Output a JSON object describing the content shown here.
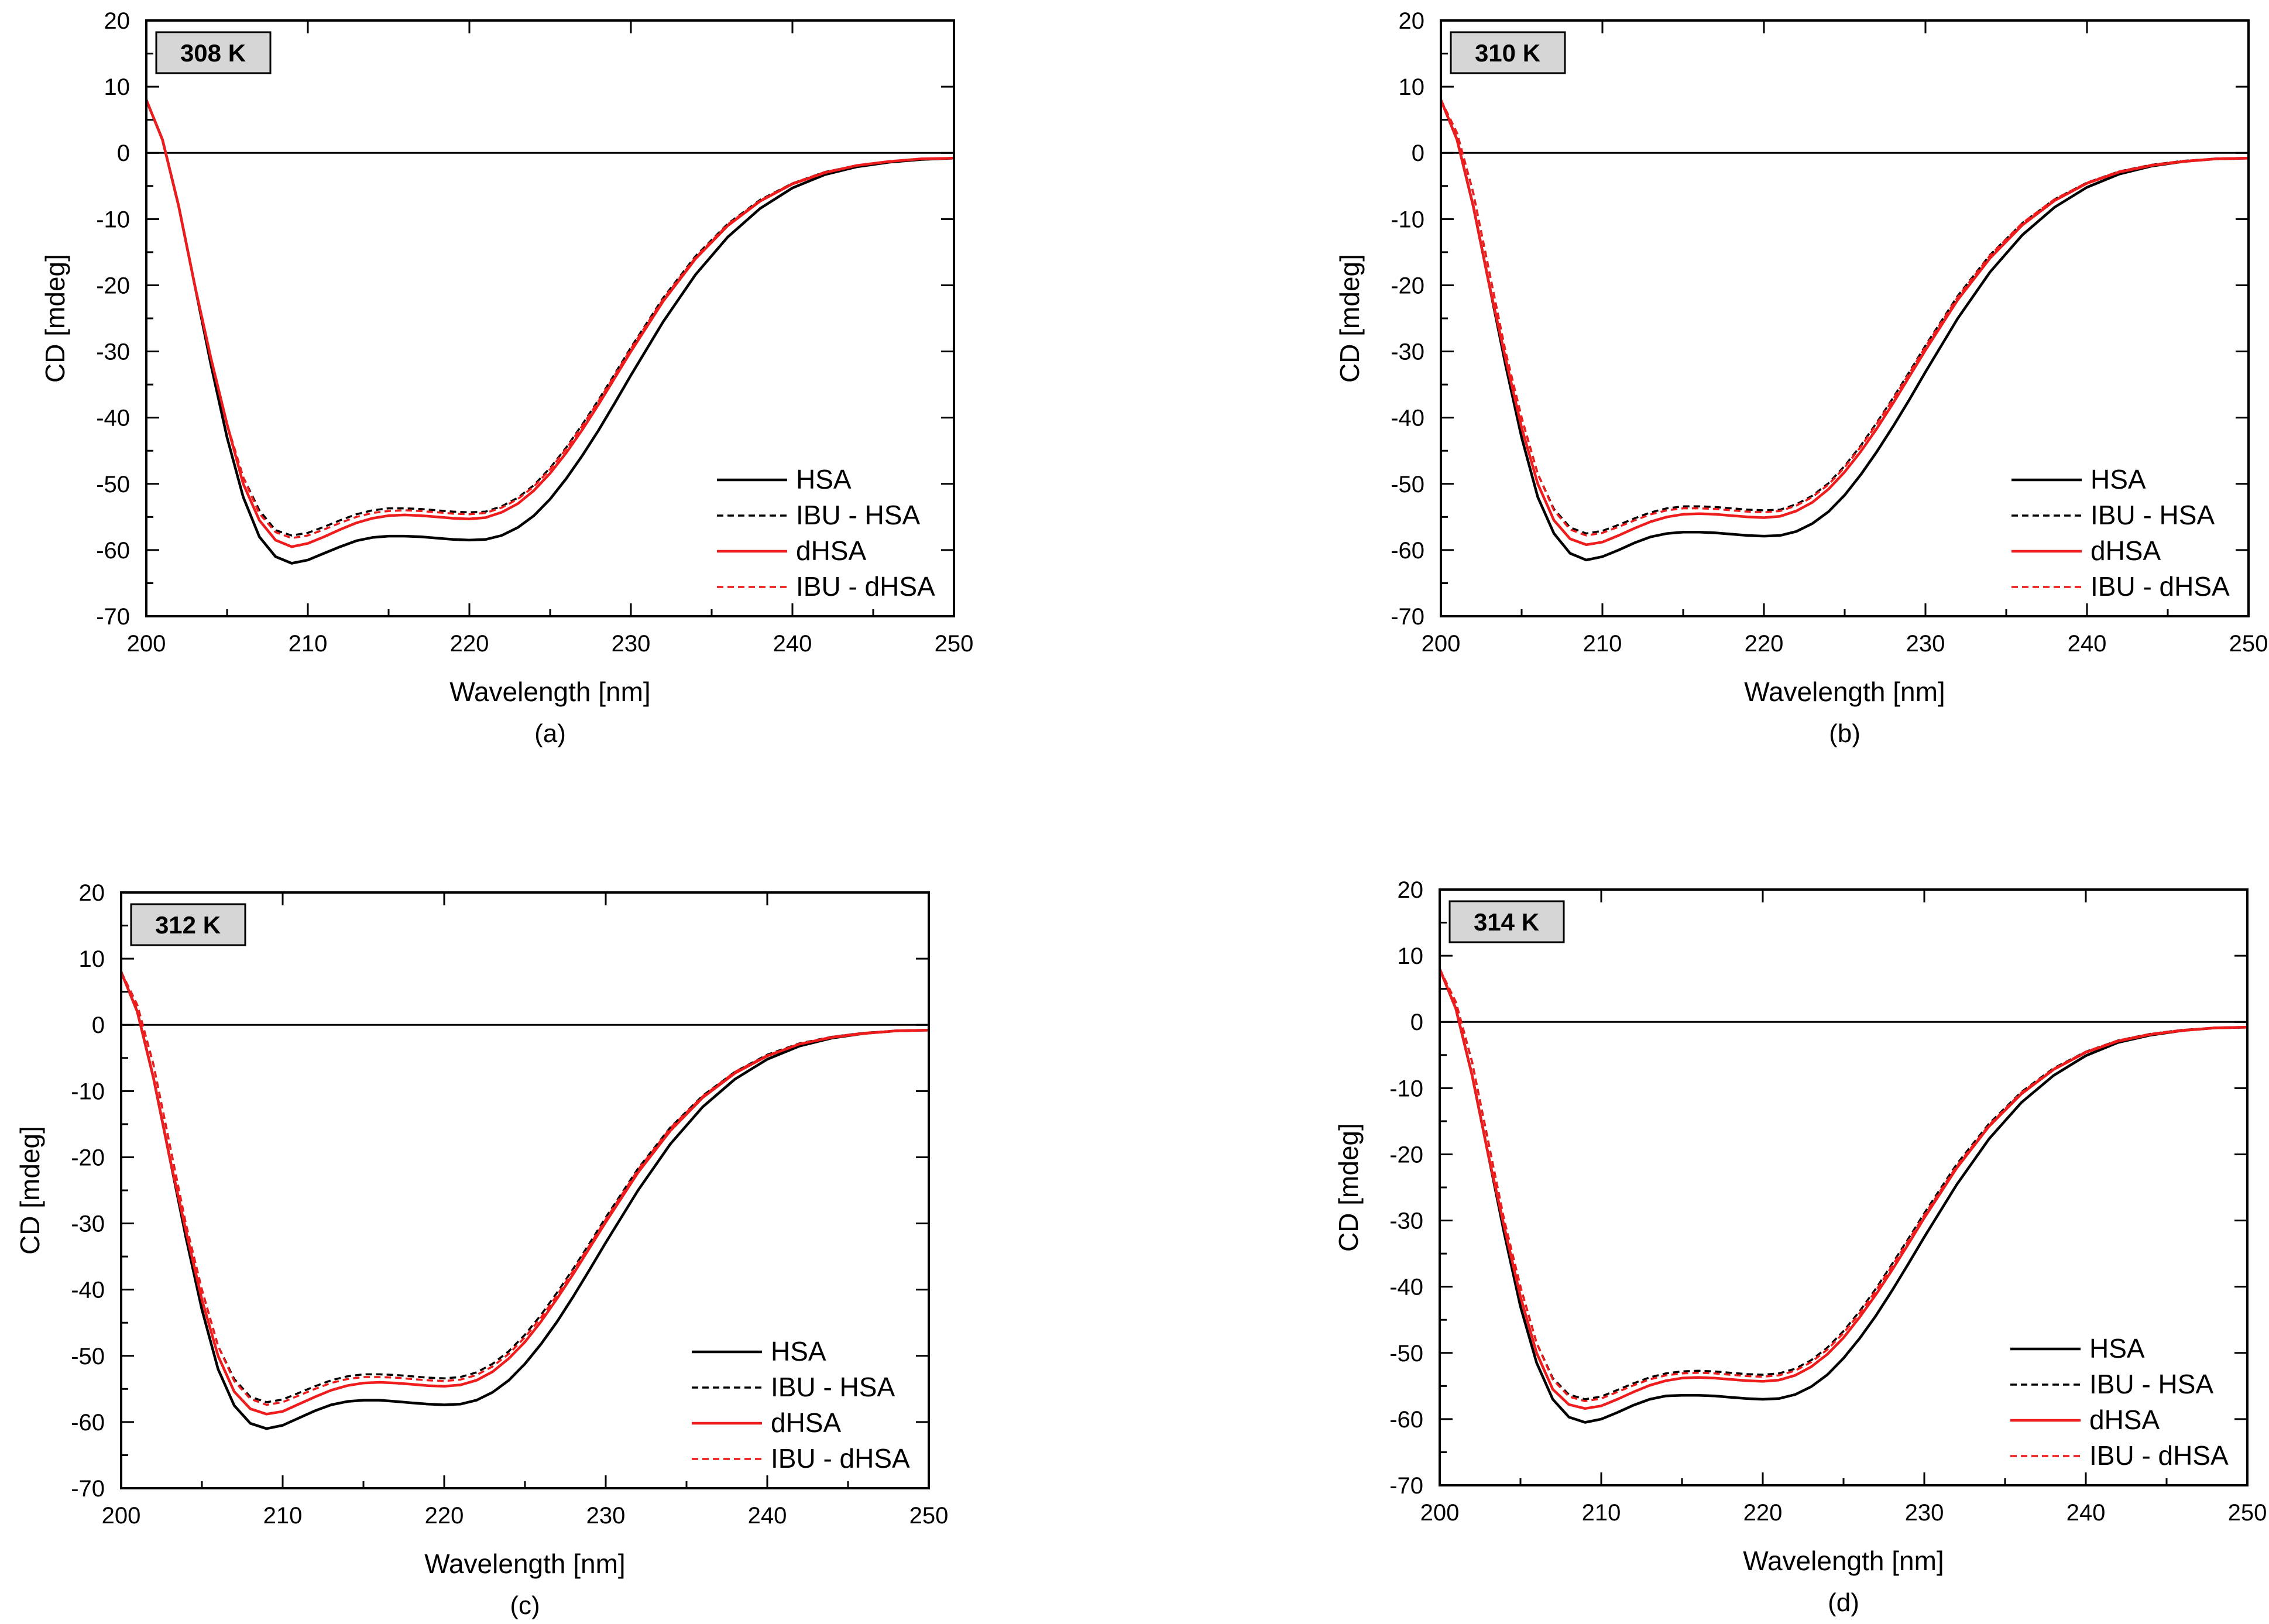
{
  "figure": {
    "colors": {
      "axis": "#000000",
      "HSA": "#000000",
      "IBU_HSA": "#000000",
      "dHSA": "#ee1c1c",
      "IBU_dHSA": "#ee1c1c",
      "badge_fill": "#d6d6d6"
    }
  },
  "chart_data": [
    {
      "type": "line",
      "panel": "(a)",
      "badge": "308 K",
      "xlabel": "Wavelength [nm]",
      "ylabel": "CD [mdeg]",
      "xlim": [
        200,
        250
      ],
      "ylim": [
        -70,
        20
      ],
      "xticks": [
        "200",
        "210",
        "220",
        "230",
        "240",
        "250"
      ],
      "yticks": [
        "20",
        "10",
        "0",
        "-10",
        "-20",
        "-30",
        "-40",
        "-50",
        "-60",
        "-70"
      ],
      "legend_position": "lower-right",
      "x": [
        200,
        201,
        202,
        203,
        204,
        205,
        206,
        207,
        208,
        209,
        210,
        211,
        212,
        213,
        214,
        215,
        216,
        217,
        218,
        219,
        220,
        221,
        222,
        223,
        224,
        225,
        226,
        227,
        228,
        229,
        230,
        232,
        234,
        236,
        238,
        240,
        242,
        244,
        246,
        248,
        250
      ],
      "series": [
        {
          "name": "HSA",
          "style": "solid",
          "color": "#000000",
          "values": [
            8,
            2,
            -8,
            -20,
            -32,
            -43,
            -52,
            -58,
            -61,
            -62,
            -61.5,
            -60.5,
            -59.5,
            -58.6,
            -58.1,
            -57.9,
            -57.9,
            -58,
            -58.2,
            -58.4,
            -58.5,
            -58.4,
            -57.8,
            -56.6,
            -54.8,
            -52.3,
            -49.2,
            -45.7,
            -41.9,
            -37.8,
            -33.6,
            -25.5,
            -18.4,
            -12.7,
            -8.4,
            -5.3,
            -3.3,
            -2.1,
            -1.4,
            -1.0,
            -0.8
          ]
        },
        {
          "name": "IBU - HSA",
          "style": "dashed",
          "color": "#000000",
          "values": [
            8,
            2,
            -8,
            -20,
            -31,
            -41,
            -49,
            -54,
            -57,
            -57.8,
            -57.4,
            -56.5,
            -55.5,
            -54.6,
            -54,
            -53.7,
            -53.7,
            -53.8,
            -54,
            -54.2,
            -54.3,
            -54.2,
            -53.4,
            -52.1,
            -50.2,
            -47.6,
            -44.5,
            -41,
            -37.3,
            -33.4,
            -29.4,
            -21.9,
            -15.6,
            -10.7,
            -7.1,
            -4.6,
            -2.9,
            -1.9,
            -1.3,
            -0.9,
            -0.8
          ]
        },
        {
          "name": "dHSA",
          "style": "solid",
          "color": "#ee1c1c",
          "values": [
            8,
            2,
            -8,
            -20,
            -31,
            -41,
            -50,
            -55.5,
            -58.5,
            -59.5,
            -59,
            -58,
            -56.9,
            -55.9,
            -55.2,
            -54.8,
            -54.7,
            -54.8,
            -55,
            -55.2,
            -55.3,
            -55.1,
            -54.3,
            -53,
            -51,
            -48.4,
            -45.3,
            -41.8,
            -38,
            -34,
            -30,
            -22.4,
            -16,
            -11,
            -7.3,
            -4.7,
            -3,
            -1.9,
            -1.3,
            -0.9,
            -0.8
          ]
        },
        {
          "name": "IBU - dHSA",
          "style": "dashed",
          "color": "#ee1c1c",
          "values": [
            8,
            2,
            -8,
            -20,
            -31,
            -41,
            -49,
            -54.5,
            -57.3,
            -58.2,
            -57.8,
            -56.9,
            -55.9,
            -55,
            -54.4,
            -54.1,
            -54,
            -54.1,
            -54.3,
            -54.5,
            -54.6,
            -54.4,
            -53.6,
            -52.3,
            -50.4,
            -47.8,
            -44.7,
            -41.2,
            -37.5,
            -33.6,
            -29.6,
            -22.1,
            -15.8,
            -10.8,
            -7.2,
            -4.6,
            -2.9,
            -1.9,
            -1.3,
            -0.9,
            -0.8
          ]
        }
      ]
    },
    {
      "type": "line",
      "panel": "(b)",
      "badge": "310 K",
      "xlabel": "Wavelength [nm]",
      "ylabel": "CD [mdeg]",
      "xlim": [
        200,
        250
      ],
      "ylim": [
        -70,
        20
      ],
      "xticks": [
        "200",
        "210",
        "220",
        "230",
        "240",
        "250"
      ],
      "yticks": [
        "20",
        "10",
        "0",
        "-10",
        "-20",
        "-30",
        "-40",
        "-50",
        "-60",
        "-70"
      ],
      "legend_position": "lower-right",
      "x": [
        200,
        201,
        202,
        203,
        204,
        205,
        206,
        207,
        208,
        209,
        210,
        211,
        212,
        213,
        214,
        215,
        216,
        217,
        218,
        219,
        220,
        221,
        222,
        223,
        224,
        225,
        226,
        227,
        228,
        229,
        230,
        232,
        234,
        236,
        238,
        240,
        242,
        244,
        246,
        248,
        250
      ],
      "series": [
        {
          "name": "HSA",
          "style": "solid",
          "color": "#000000",
          "values": [
            8,
            2,
            -8,
            -20,
            -32,
            -43,
            -52,
            -57.5,
            -60.5,
            -61.5,
            -61,
            -60,
            -58.9,
            -58,
            -57.5,
            -57.3,
            -57.3,
            -57.4,
            -57.6,
            -57.8,
            -57.9,
            -57.8,
            -57.2,
            -56,
            -54.2,
            -51.7,
            -48.6,
            -45.1,
            -41.3,
            -37.3,
            -33.1,
            -25,
            -18,
            -12.4,
            -8.2,
            -5.2,
            -3.2,
            -2,
            -1.3,
            -0.9,
            -0.8
          ]
        },
        {
          "name": "IBU - HSA",
          "style": "dashed",
          "color": "#000000",
          "values": [
            8,
            3,
            -6,
            -18,
            -30,
            -40,
            -48.5,
            -53.8,
            -56.6,
            -57.5,
            -57.1,
            -56.2,
            -55.2,
            -54.3,
            -53.7,
            -53.4,
            -53.4,
            -53.5,
            -53.7,
            -53.9,
            -54,
            -53.9,
            -53.1,
            -51.8,
            -49.9,
            -47.3,
            -44.2,
            -40.7,
            -37,
            -33.1,
            -29.1,
            -21.6,
            -15.4,
            -10.6,
            -7,
            -4.5,
            -2.8,
            -1.8,
            -1.2,
            -0.9,
            -0.8
          ]
        },
        {
          "name": "dHSA",
          "style": "solid",
          "color": "#ee1c1c",
          "values": [
            8,
            2,
            -8,
            -20,
            -31,
            -41.5,
            -50,
            -55.5,
            -58.3,
            -59.2,
            -58.8,
            -57.8,
            -56.7,
            -55.7,
            -55,
            -54.6,
            -54.5,
            -54.6,
            -54.8,
            -55,
            -55.1,
            -54.9,
            -54.1,
            -52.8,
            -50.8,
            -48.2,
            -45.1,
            -41.6,
            -37.8,
            -33.8,
            -29.8,
            -22.2,
            -15.9,
            -10.9,
            -7.2,
            -4.6,
            -2.9,
            -1.9,
            -1.3,
            -0.9,
            -0.8
          ]
        },
        {
          "name": "IBU - dHSA",
          "style": "dashed",
          "color": "#ee1c1c",
          "values": [
            8,
            3,
            -6,
            -18,
            -30,
            -40,
            -48.5,
            -54,
            -56.9,
            -57.8,
            -57.4,
            -56.5,
            -55.5,
            -54.6,
            -54,
            -53.7,
            -53.7,
            -53.8,
            -54,
            -54.2,
            -54.3,
            -54.1,
            -53.3,
            -52,
            -50.1,
            -47.5,
            -44.4,
            -40.9,
            -37.2,
            -33.3,
            -29.3,
            -21.8,
            -15.5,
            -10.6,
            -7,
            -4.5,
            -2.8,
            -1.8,
            -1.2,
            -0.9,
            -0.8
          ]
        }
      ]
    },
    {
      "type": "line",
      "panel": "(c)",
      "badge": "312 K",
      "xlabel": "Wavelength [nm]",
      "ylabel": "CD [mdeg]",
      "xlim": [
        200,
        250
      ],
      "ylim": [
        -70,
        20
      ],
      "xticks": [
        "200",
        "210",
        "220",
        "230",
        "240",
        "250"
      ],
      "yticks": [
        "20",
        "10",
        "0",
        "-10",
        "-20",
        "-30",
        "-40",
        "-50",
        "-60",
        "-70"
      ],
      "legend_position": "lower-right",
      "x": [
        200,
        201,
        202,
        203,
        204,
        205,
        206,
        207,
        208,
        209,
        210,
        211,
        212,
        213,
        214,
        215,
        216,
        217,
        218,
        219,
        220,
        221,
        222,
        223,
        224,
        225,
        226,
        227,
        228,
        229,
        230,
        232,
        234,
        236,
        238,
        240,
        242,
        244,
        246,
        248,
        250
      ],
      "series": [
        {
          "name": "HSA",
          "style": "solid",
          "color": "#000000",
          "values": [
            8,
            2,
            -8,
            -20,
            -32,
            -43,
            -52,
            -57.5,
            -60.2,
            -61,
            -60.5,
            -59.4,
            -58.3,
            -57.4,
            -56.9,
            -56.7,
            -56.7,
            -56.9,
            -57.1,
            -57.3,
            -57.4,
            -57.3,
            -56.7,
            -55.5,
            -53.7,
            -51.2,
            -48.2,
            -44.8,
            -41,
            -37,
            -32.9,
            -25,
            -18,
            -12.4,
            -8.2,
            -5.2,
            -3.2,
            -2,
            -1.3,
            -0.9,
            -0.8
          ]
        },
        {
          "name": "IBU - HSA",
          "style": "dashed",
          "color": "#000000",
          "values": [
            8,
            3,
            -6,
            -18,
            -30,
            -40,
            -48.5,
            -53.5,
            -56.2,
            -57,
            -56.6,
            -55.6,
            -54.6,
            -53.7,
            -53.1,
            -52.8,
            -52.8,
            -52.9,
            -53.1,
            -53.3,
            -53.4,
            -53.2,
            -52.5,
            -51.2,
            -49.3,
            -46.8,
            -43.8,
            -40.4,
            -36.8,
            -33,
            -29.1,
            -21.7,
            -15.5,
            -10.7,
            -7.1,
            -4.5,
            -2.8,
            -1.8,
            -1.2,
            -0.9,
            -0.8
          ]
        },
        {
          "name": "dHSA",
          "style": "solid",
          "color": "#ee1c1c",
          "values": [
            8,
            2,
            -8,
            -20,
            -31,
            -41.5,
            -50,
            -55.4,
            -58,
            -58.8,
            -58.4,
            -57.3,
            -56.2,
            -55.2,
            -54.5,
            -54.1,
            -54,
            -54.1,
            -54.3,
            -54.5,
            -54.6,
            -54.4,
            -53.7,
            -52.4,
            -50.4,
            -47.9,
            -44.8,
            -41.3,
            -37.6,
            -33.7,
            -29.8,
            -22.3,
            -16,
            -11,
            -7.3,
            -4.7,
            -2.9,
            -1.9,
            -1.3,
            -0.9,
            -0.8
          ]
        },
        {
          "name": "IBU - dHSA",
          "style": "dashed",
          "color": "#ee1c1c",
          "values": [
            8,
            3,
            -6,
            -18,
            -30,
            -40,
            -48.5,
            -53.8,
            -56.5,
            -57.4,
            -57,
            -56,
            -55,
            -54.1,
            -53.5,
            -53.2,
            -53.2,
            -53.3,
            -53.5,
            -53.7,
            -53.8,
            -53.6,
            -52.9,
            -51.6,
            -49.7,
            -47.2,
            -44.2,
            -40.8,
            -37.1,
            -33.3,
            -29.4,
            -21.9,
            -15.6,
            -10.8,
            -7.1,
            -4.6,
            -2.9,
            -1.8,
            -1.2,
            -0.9,
            -0.8
          ]
        }
      ]
    },
    {
      "type": "line",
      "panel": "(d)",
      "badge": "314 K",
      "xlabel": "Wavelength [nm]",
      "ylabel": "CD [mdeg]",
      "xlim": [
        200,
        250
      ],
      "ylim": [
        -70,
        20
      ],
      "xticks": [
        "200",
        "210",
        "220",
        "230",
        "240",
        "250"
      ],
      "yticks": [
        "20",
        "10",
        "0",
        "-10",
        "-20",
        "-30",
        "-40",
        "-50",
        "-60",
        "-70"
      ],
      "legend_position": "lower-right",
      "x": [
        200,
        201,
        202,
        203,
        204,
        205,
        206,
        207,
        208,
        209,
        210,
        211,
        212,
        213,
        214,
        215,
        216,
        217,
        218,
        219,
        220,
        221,
        222,
        223,
        224,
        225,
        226,
        227,
        228,
        229,
        230,
        232,
        234,
        236,
        238,
        240,
        242,
        244,
        246,
        248,
        250
      ],
      "series": [
        {
          "name": "HSA",
          "style": "solid",
          "color": "#000000",
          "values": [
            8,
            2,
            -8,
            -20,
            -32,
            -43,
            -51.5,
            -57,
            -59.7,
            -60.5,
            -60,
            -59,
            -57.9,
            -57,
            -56.5,
            -56.4,
            -56.4,
            -56.5,
            -56.7,
            -56.9,
            -57,
            -56.9,
            -56.3,
            -55.1,
            -53.3,
            -50.8,
            -47.8,
            -44.4,
            -40.6,
            -36.6,
            -32.5,
            -24.6,
            -17.7,
            -12.2,
            -8.1,
            -5.1,
            -3.1,
            -2,
            -1.3,
            -0.9,
            -0.8
          ]
        },
        {
          "name": "IBU - HSA",
          "style": "dashed",
          "color": "#000000",
          "values": [
            8,
            3,
            -6,
            -18,
            -30,
            -40,
            -48.5,
            -53.8,
            -56.3,
            -57,
            -56.6,
            -55.6,
            -54.6,
            -53.7,
            -53.1,
            -52.8,
            -52.7,
            -52.8,
            -53,
            -53.2,
            -53.3,
            -53.1,
            -52.4,
            -51.1,
            -49.2,
            -46.7,
            -43.7,
            -40.3,
            -36.6,
            -32.8,
            -28.9,
            -21.5,
            -15.4,
            -10.6,
            -7,
            -4.5,
            -2.8,
            -1.8,
            -1.2,
            -0.9,
            -0.8
          ]
        },
        {
          "name": "dHSA",
          "style": "solid",
          "color": "#ee1c1c",
          "values": [
            8,
            2,
            -8,
            -20,
            -31,
            -41.5,
            -50,
            -55.5,
            -57.8,
            -58.4,
            -58,
            -57,
            -55.9,
            -54.9,
            -54.2,
            -53.8,
            -53.7,
            -53.8,
            -54,
            -54.2,
            -54.3,
            -54.1,
            -53.4,
            -52.1,
            -50.2,
            -47.7,
            -44.6,
            -41.2,
            -37.5,
            -33.6,
            -29.6,
            -22.1,
            -15.8,
            -10.9,
            -7.2,
            -4.6,
            -2.9,
            -1.9,
            -1.3,
            -0.9,
            -0.8
          ]
        },
        {
          "name": "IBU - dHSA",
          "style": "dashed",
          "color": "#ee1c1c",
          "values": [
            8,
            3,
            -6,
            -18,
            -30,
            -40,
            -48.5,
            -54,
            -56.6,
            -57.3,
            -56.9,
            -55.9,
            -54.9,
            -54,
            -53.4,
            -53.1,
            -53,
            -53.1,
            -53.3,
            -53.5,
            -53.6,
            -53.4,
            -52.7,
            -51.4,
            -49.5,
            -47,
            -44,
            -40.6,
            -36.9,
            -33.1,
            -29.2,
            -21.8,
            -15.6,
            -10.7,
            -7.1,
            -4.5,
            -2.8,
            -1.8,
            -1.2,
            -0.9,
            -0.8
          ]
        }
      ]
    }
  ]
}
